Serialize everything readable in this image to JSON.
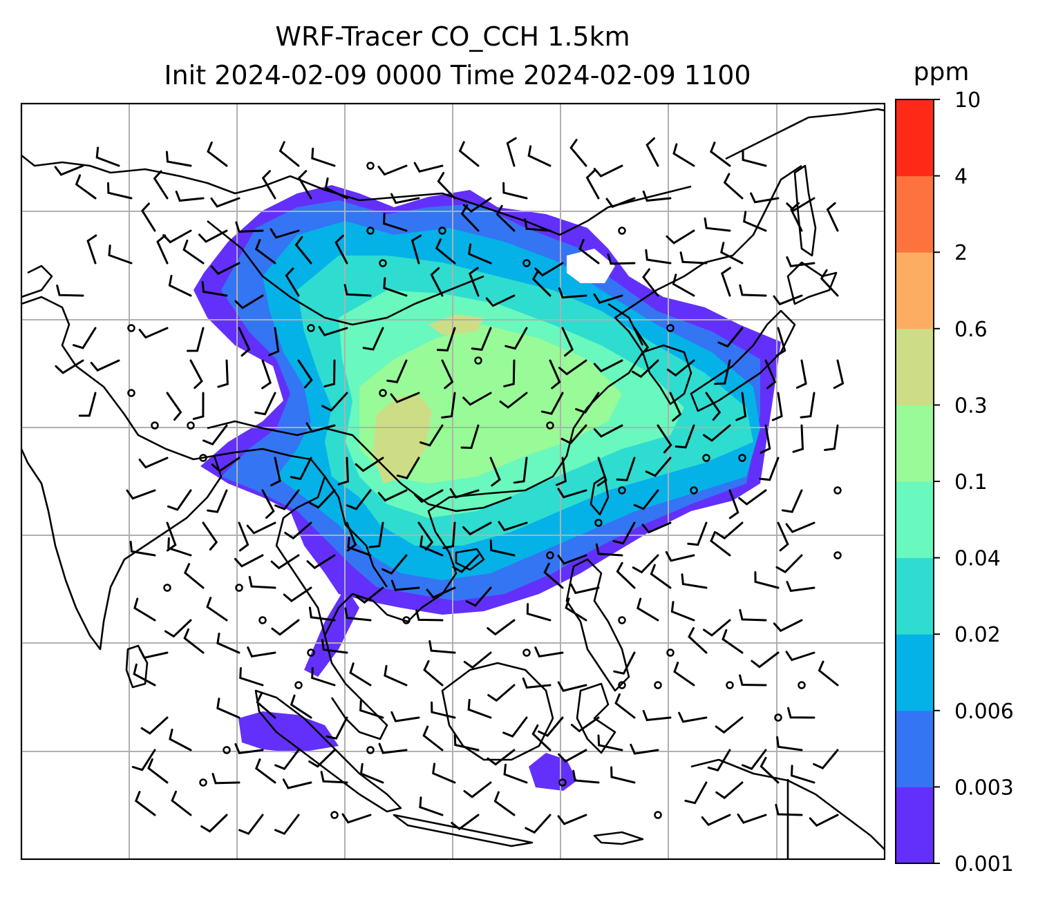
{
  "title": {
    "line1": "WRF-Tracer CO_CCH 1.5km",
    "line2": "Init 2024-02-09 0000 Time 2024-02-09 1100"
  },
  "colorbar": {
    "unit_label": "ppm",
    "levels": [
      "0.001",
      "0.003",
      "0.006",
      "0.02",
      "0.04",
      "0.1",
      "0.3",
      "0.6",
      "2",
      "4",
      "10"
    ],
    "colors": [
      "#6330fb",
      "#3475f3",
      "#04b2e8",
      "#2fdcd0",
      "#69f8bd",
      "#99fa98",
      "#cddd86",
      "#fdad62",
      "#fe733d",
      "#fe2a17"
    ]
  },
  "map": {
    "gridlines": true,
    "coastline_color": "#000000",
    "grid_color": "#b0b0b0",
    "wind_barbs": true
  }
}
